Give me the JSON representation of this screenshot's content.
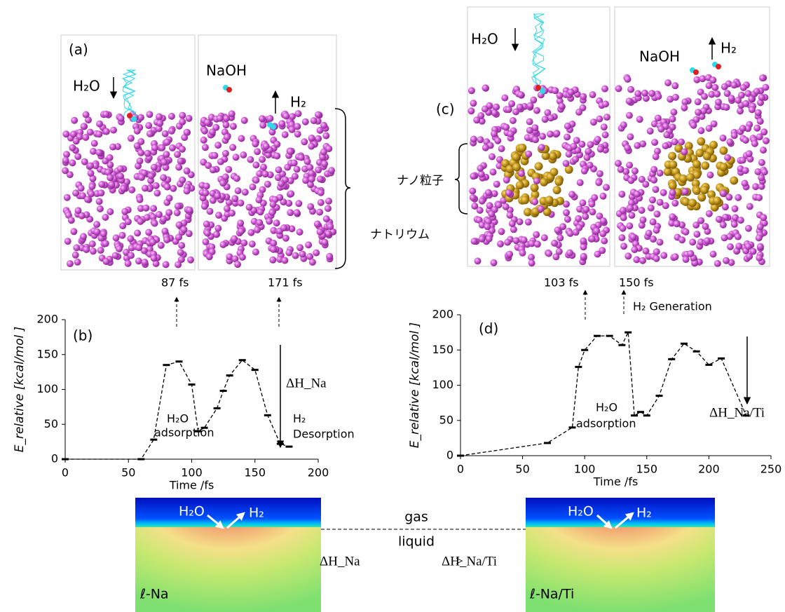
{
  "panels": {
    "a": "(a)",
    "b": "(b)",
    "c": "(c)",
    "d": "(d)"
  },
  "snapshot_a": {
    "water": "H₂O",
    "naoh": "NaOH",
    "hydrogen": "H₂",
    "sodium": "ナトリウム",
    "time1": "87 fs",
    "time2": "171 fs"
  },
  "snapshot_c": {
    "water": "H₂O",
    "naoh": "NaOH",
    "hydrogen": "H₂",
    "nanoparticle": "ナノ粒子",
    "time1": "103 fs",
    "time2": "150 fs",
    "generation": "H₂ Generation"
  },
  "chart_data": [
    {
      "type": "line",
      "ylabel": "E_relative [kcal/mol ]",
      "xlabel": "Time /fs",
      "x": [
        0,
        60,
        70,
        80,
        90,
        100,
        105,
        110,
        120,
        125,
        130,
        140,
        150,
        160,
        170,
        177
      ],
      "values": [
        0,
        0,
        28,
        135,
        140,
        107,
        40,
        45,
        73,
        98,
        120,
        142,
        128,
        63,
        22,
        18
      ],
      "xlim": [
        0,
        200
      ],
      "ylim": [
        0,
        200
      ],
      "xticks": [
        0,
        50,
        100,
        150,
        200
      ],
      "yticks": [
        0,
        50,
        100,
        150,
        200
      ],
      "annotations": {
        "delta": "ΔH_Na",
        "ads1": "H₂O",
        "ads2": "adsorption",
        "des1": "H₂",
        "des2": "Desorption"
      }
    },
    {
      "type": "line",
      "ylabel": "E_relative [kcal/mol ]",
      "xlabel": "Time /fs",
      "x": [
        0,
        70,
        90,
        95,
        100,
        110,
        120,
        130,
        135,
        140,
        145,
        150,
        160,
        170,
        180,
        190,
        200,
        210,
        230
      ],
      "values": [
        0,
        18,
        40,
        126,
        150,
        170,
        170,
        157,
        175,
        57,
        62,
        57,
        85,
        137,
        159,
        148,
        129,
        138,
        57
      ],
      "xlim": [
        0,
        250
      ],
      "ylim": [
        0,
        200
      ],
      "xticks": [
        0,
        50,
        100,
        150,
        200,
        250
      ],
      "yticks": [
        0,
        50,
        100,
        150,
        200
      ],
      "annotations": {
        "ads1": "H₂O",
        "ads2": "adsorption",
        "delta": "ΔH_Na/Ti"
      }
    }
  ],
  "schematic": {
    "water_left": "H₂O",
    "h2_left": "H₂",
    "water_right": "H₂O",
    "h2_right": "H₂",
    "gas": "gas",
    "liquid": "liquid",
    "dh_na": "ΔH_Na",
    "gt": ">",
    "dh_nati": "ΔH_Na/Ti",
    "label_left": "ℓ-Na",
    "label_right": "ℓ-Na/Ti"
  }
}
